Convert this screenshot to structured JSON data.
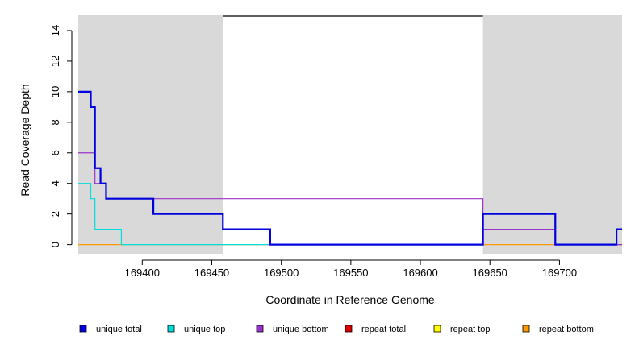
{
  "chart_data": {
    "type": "line",
    "line_style": "step",
    "xlabel": "Coordinate in Reference Genome",
    "ylabel": "Read Coverage Depth",
    "xlim": [
      169354,
      169745
    ],
    "ylim": [
      -0.6,
      15
    ],
    "x_ticks": [
      169400,
      169450,
      169500,
      169550,
      169600,
      169650,
      169700
    ],
    "y_ticks": [
      0,
      2,
      4,
      6,
      8,
      10,
      12,
      14
    ],
    "legend_position": "bottom",
    "shaded_regions": [
      {
        "x": [
          169354,
          169458
        ],
        "color": "#d9d9d9"
      },
      {
        "x": [
          169645,
          169745
        ],
        "color": "#d9d9d9"
      }
    ],
    "top_bar": {
      "x": [
        169458,
        169645
      ],
      "color": "#000000"
    },
    "series": [
      {
        "name": "unique total",
        "color": "#0000dd",
        "x": [
          169354,
          169363,
          169363,
          169366,
          169366,
          169370,
          169370,
          169374,
          169374,
          169385,
          169385,
          169408,
          169408,
          169458,
          169458,
          169492,
          169492,
          169645,
          169645,
          169697,
          169697,
          169741,
          169741,
          169745
        ],
        "y": [
          10,
          10,
          9,
          9,
          5,
          5,
          4,
          4,
          3,
          3,
          3,
          3,
          2,
          2,
          1,
          1,
          0,
          0,
          2,
          2,
          0,
          0,
          1,
          1
        ]
      },
      {
        "name": "unique top",
        "color": "#00dddd",
        "x": [
          169354,
          169363,
          169363,
          169366,
          169366,
          169385,
          169385,
          169492
        ],
        "y": [
          4,
          4,
          3,
          3,
          1,
          1,
          0,
          0
        ]
      },
      {
        "name": "unique bottom",
        "color": "#9933cc",
        "x": [
          169354,
          169366,
          169366,
          169374,
          169374,
          169645,
          169645,
          169697,
          169697,
          169745
        ],
        "y": [
          6,
          6,
          4,
          4,
          3,
          3,
          1,
          1,
          0,
          0
        ]
      },
      {
        "name": "repeat total",
        "color": "#dd0000",
        "x": [],
        "y": []
      },
      {
        "name": "repeat top",
        "color": "#ffff00",
        "x": [],
        "y": []
      },
      {
        "name": "repeat bottom",
        "color": "#ff9900",
        "x": [
          169354,
          169745
        ],
        "y": [
          0,
          0
        ]
      }
    ]
  }
}
